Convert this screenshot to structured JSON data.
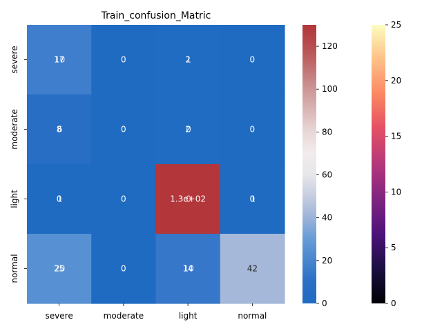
{
  "chart_data": {
    "type": "heatmap",
    "title": "Train_confusion_Matric",
    "xlabel": "",
    "ylabel": "",
    "rows": [
      "severe",
      "moderate",
      "light",
      "normal"
    ],
    "columns": [
      "severe",
      "moderate",
      "light",
      "normal"
    ],
    "values": [
      [
        17,
        0,
        2,
        0
      ],
      [
        8,
        0,
        2,
        0
      ],
      [
        0,
        0,
        130,
        0
      ],
      [
        25,
        0,
        14,
        42
      ]
    ],
    "overlay_values": [
      [
        10,
        0,
        1,
        0
      ],
      [
        6,
        0,
        0,
        0
      ],
      [
        1,
        0,
        0,
        1
      ],
      [
        20,
        0,
        10,
        0
      ]
    ],
    "cell_labels": [
      [
        "17",
        "0",
        "2",
        "0"
      ],
      [
        "8",
        "0",
        "2",
        "0"
      ],
      [
        "0",
        "0",
        "1.3e+02",
        "0"
      ],
      [
        "25",
        "0",
        "14",
        "42"
      ]
    ],
    "overlay_labels": [
      [
        "10",
        "0",
        "1",
        "0"
      ],
      [
        "6",
        "0",
        "0",
        "0"
      ],
      [
        "1",
        "0",
        "0",
        "1"
      ],
      [
        "20",
        "0",
        "10",
        ""
      ]
    ],
    "colorbar_main": {
      "colormap": "coolwarm",
      "min": 0,
      "max": 130,
      "ticks": [
        "0",
        "20",
        "40",
        "60",
        "80",
        "100",
        "120"
      ],
      "tick_values": [
        0,
        20,
        40,
        60,
        80,
        100,
        120
      ]
    },
    "colorbar_secondary": {
      "colormap": "magma",
      "min": 0,
      "max": 25,
      "ticks": [
        "0",
        "5",
        "10",
        "15",
        "20",
        "25"
      ],
      "tick_values": [
        0,
        5,
        10,
        15,
        20,
        25
      ]
    },
    "colors": {
      "low": "#1f6bc2",
      "high": "#b2363a"
    }
  }
}
